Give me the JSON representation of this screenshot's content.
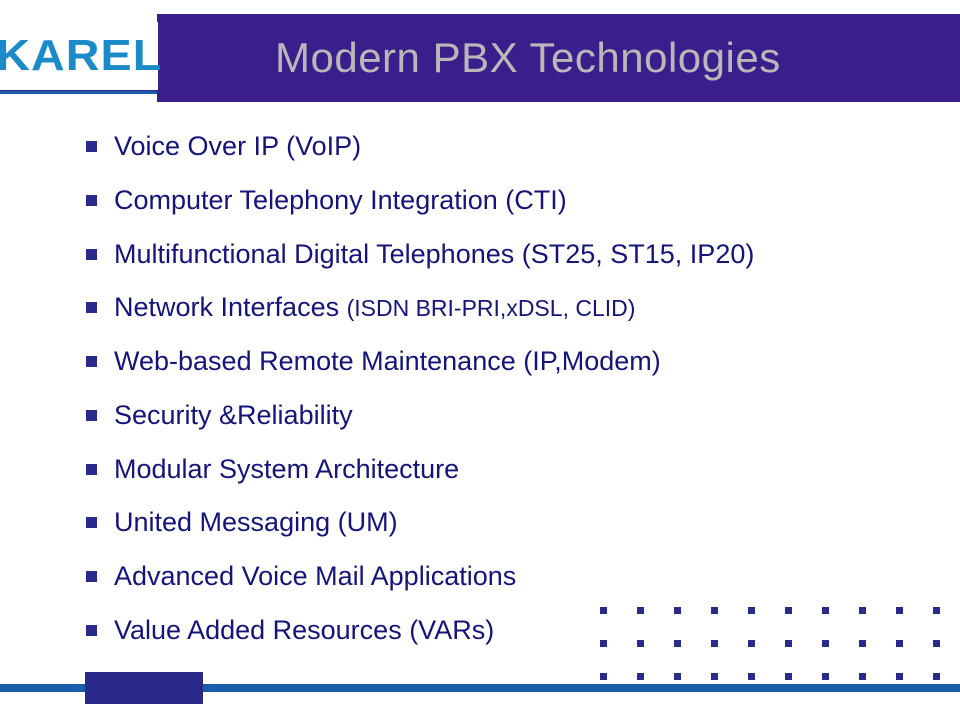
{
  "logo": {
    "text": "KAREL"
  },
  "title": "Modern PBX Technologies",
  "bullets": [
    {
      "text": "Voice Over IP (VoIP)"
    },
    {
      "text": "Computer Telephony Integration (CTI)"
    },
    {
      "text": "Multifunctional Digital Telephones (ST25, ST15, IP20)"
    },
    {
      "text": "Network Interfaces ",
      "sub": "(ISDN BRI-PRI,xDSL, CLID)"
    },
    {
      "text": "Web-based Remote Maintenance (IP,Modem)"
    },
    {
      "text": "Security &Reliability"
    },
    {
      "text": "Modular System Architecture"
    },
    {
      "text": "United Messaging (UM)"
    },
    {
      "text": "Advanced Voice Mail Applications"
    },
    {
      "text": "Value Added Resources (VARs)"
    }
  ],
  "colors": {
    "header_bg": "#2a2a8a",
    "title_bg": "#3a1e8c",
    "title_color": "#b8b8b8",
    "accent": "#1a5ca8",
    "logo_bg": "#ffffff",
    "logo_color": "#1a8ac8",
    "text_color": "#14147a",
    "bullet_color": "#2a2a8a",
    "dot_color": "#2a2a8a"
  },
  "decoration": {
    "dot_count": 30
  }
}
